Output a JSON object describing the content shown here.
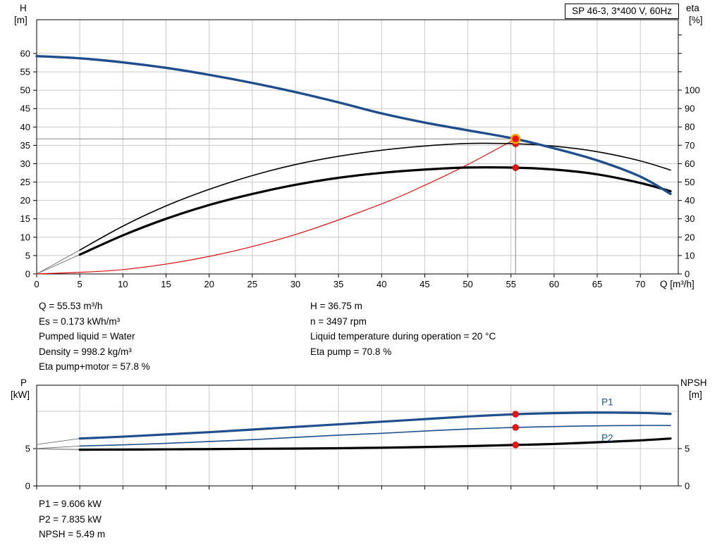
{
  "title_box": {
    "label": "SP 46-3, 3*400 V, 60Hz"
  },
  "axes_labels": {
    "h": "H",
    "h_unit": "[m]",
    "eta": "eta",
    "eta_unit": "[%]",
    "q": "Q [m³/h]",
    "p": "P",
    "p_unit": "[kW]",
    "npsh": "NPSH",
    "npsh_unit": "[m]"
  },
  "info_panel": {
    "left": [
      "Q = 55.53 m³/h",
      "Es = 0.173 kWh/m³",
      "Pumped liquid = Water",
      "Density = 998.2 kg/m³",
      "Eta pump+motor = 57.8 %"
    ],
    "right": [
      "H = 36.75 m",
      "n = 3497 rpm",
      "Liquid temperature during operation = 20 °C",
      "Eta pump = 70.8 %"
    ]
  },
  "results_panel": [
    "P1 = 9.606 kW",
    "P2 = 7.835 kW",
    "NPSH = 5.49 m"
  ],
  "duty_point": {
    "Q_m3h": 55.53,
    "H_m": 36.75,
    "eta_pump_pct": 70.8,
    "eta_pump_motor_pct": 57.8,
    "P1_kW": 9.606,
    "P2_kW": 7.835,
    "NPSH_m": 5.49,
    "n_rpm": 3497
  },
  "colors": {
    "curve_blue": "#1f4e8c",
    "curve_black": "#000000",
    "curve_red": "#e01010",
    "marker_red": "#e8150d",
    "marker_ring_orange": "#ffa400",
    "grid_gray": "#c9c9c9",
    "crosshair_gray": "#888888",
    "lead_gray": "#6f6f6f"
  },
  "chart_data": [
    {
      "type": "line",
      "name": "qh-eta-chart",
      "title": "SP 46-3, 3*400 V, 60Hz",
      "xlabel": "Q [m³/h]",
      "ylabel_left": "H [m]",
      "ylabel_right": "eta [%]",
      "xlim": [
        0,
        74.4
      ],
      "ylim_left": [
        0,
        69.2
      ],
      "ylim_right": [
        0,
        138.3
      ],
      "xticks": [
        0,
        5,
        10,
        15,
        20,
        25,
        30,
        35,
        40,
        45,
        50,
        55,
        60,
        65,
        70
      ],
      "x_tick_labels": true,
      "yticks_left": [
        0,
        5,
        10,
        15,
        20,
        25,
        30,
        35,
        40,
        45,
        50,
        55,
        60
      ],
      "yticks_right": [
        0,
        10,
        20,
        30,
        40,
        50,
        60,
        70,
        80,
        90,
        100
      ],
      "yticks_right_unlabeled": [
        110,
        120,
        130
      ],
      "ygrid": [
        5,
        10,
        15,
        20,
        25,
        30,
        35,
        40,
        45,
        50,
        55,
        60
      ],
      "grid": true,
      "legend_position": "none",
      "crosshair": {
        "q": 55.53,
        "h": 36.75
      },
      "series": [
        {
          "name": "eta-pump-lead",
          "axis": "right",
          "color": "#6f6f6f",
          "width": 0.9,
          "x": [
            0,
            5
          ],
          "y": [
            0,
            13
          ]
        },
        {
          "name": "eta-pump-motor-lead",
          "axis": "right",
          "color": "#6f6f6f",
          "width": 0.9,
          "x": [
            0,
            5
          ],
          "y": [
            0,
            10.5
          ]
        },
        {
          "name": "system-curve",
          "axis": "left",
          "color": "#e01010",
          "width": 1.2,
          "x": [
            0,
            10,
            20,
            30,
            40,
            45,
            50,
            55.53
          ],
          "y": [
            0,
            1.19,
            4.77,
            10.73,
            19.07,
            24.14,
            29.79,
            36.75
          ]
        },
        {
          "name": "eta-pump-curve",
          "axis": "right",
          "color": "#000000",
          "width": 1.6,
          "x": [
            5,
            10,
            15,
            20,
            25,
            30,
            35,
            40,
            45,
            50,
            55.53,
            60,
            65,
            70,
            73.5
          ],
          "y": [
            13,
            26,
            37,
            46,
            53.5,
            59.5,
            64,
            67.3,
            69.6,
            71.0,
            70.8,
            69.5,
            66.5,
            61.5,
            56.5
          ]
        },
        {
          "name": "eta-pump-motor-curve",
          "axis": "right",
          "color": "#000000",
          "width": 3.2,
          "x": [
            5,
            10,
            15,
            20,
            25,
            30,
            35,
            40,
            45,
            50,
            55.53,
            60,
            65,
            70,
            73.5
          ],
          "y": [
            10.5,
            21,
            30,
            37.5,
            43.5,
            48.5,
            52.3,
            55.0,
            56.8,
            57.9,
            57.8,
            56.8,
            54.2,
            49.5,
            45.0
          ]
        },
        {
          "name": "pump-curve",
          "axis": "left",
          "color": "#1f4e8c",
          "width": 3.4,
          "x": [
            0,
            5,
            10,
            15,
            20,
            25,
            30,
            35,
            40,
            45,
            50,
            55.53,
            60,
            65,
            70,
            73.5
          ],
          "y": [
            59.3,
            58.7,
            57.6,
            56.1,
            54.2,
            52.0,
            49.5,
            46.7,
            43.7,
            41.2,
            39.1,
            36.75,
            34.2,
            30.9,
            26.5,
            21.8
          ]
        }
      ],
      "markers": [
        {
          "name": "eta-pump-motor-point",
          "q": 55.53,
          "value": 57.8,
          "axis": "right",
          "style": "dot"
        },
        {
          "name": "eta-pump-point",
          "q": 55.53,
          "value": 70.8,
          "axis": "right",
          "style": "dot"
        },
        {
          "name": "duty-point",
          "q": 55.53,
          "value": 36.75,
          "axis": "left",
          "style": "target"
        }
      ]
    },
    {
      "type": "line",
      "name": "power-npsh-chart",
      "title": "",
      "xlabel": "",
      "ylabel_left": "P [kW]",
      "ylabel_right": "NPSH [m]",
      "xlim": [
        0,
        74.4
      ],
      "ylim_left": [
        0,
        13.49
      ],
      "ylim_right": [
        0,
        13.49
      ],
      "xticks": [
        0,
        5,
        10,
        15,
        20,
        25,
        30,
        35,
        40,
        45,
        50,
        55,
        60,
        65,
        70
      ],
      "x_tick_labels": false,
      "yticks_left": [
        0,
        5
      ],
      "yticks_right": [
        0,
        5
      ],
      "yticks_right_unlabeled": [],
      "ygrid": [
        5,
        10
      ],
      "grid": true,
      "legend_position": "inline",
      "series": [
        {
          "name": "p1-lead",
          "axis": "left",
          "color": "#6f6f6f",
          "width": 0.9,
          "x": [
            0,
            5
          ],
          "y": [
            5.55,
            6.35
          ]
        },
        {
          "name": "p2-lead",
          "axis": "left",
          "color": "#6f6f6f",
          "width": 0.9,
          "x": [
            0,
            5
          ],
          "y": [
            5.0,
            5.35
          ]
        },
        {
          "name": "npsh-lead",
          "axis": "right",
          "color": "#6f6f6f",
          "width": 0.9,
          "x": [
            0,
            5
          ],
          "y": [
            4.95,
            4.85
          ]
        },
        {
          "name": "p2-curve",
          "axis": "left",
          "color": "#1f4e8c",
          "width": 1.6,
          "x": [
            5,
            10,
            15,
            20,
            25,
            30,
            35,
            40,
            45,
            50,
            55.53,
            60,
            65,
            70,
            73.5
          ],
          "y": [
            5.35,
            5.5,
            5.7,
            5.95,
            6.2,
            6.5,
            6.8,
            7.05,
            7.35,
            7.62,
            7.835,
            7.95,
            8.05,
            8.1,
            8.1
          ]
        },
        {
          "name": "npsh-curve",
          "axis": "right",
          "color": "#000000",
          "width": 3.2,
          "x": [
            5,
            10,
            15,
            20,
            25,
            30,
            35,
            40,
            45,
            50,
            55.53,
            60,
            65,
            70,
            73.5
          ],
          "y": [
            4.85,
            4.87,
            4.9,
            4.93,
            4.97,
            5.0,
            5.05,
            5.12,
            5.22,
            5.33,
            5.49,
            5.62,
            5.85,
            6.1,
            6.35
          ]
        },
        {
          "name": "p1-curve",
          "axis": "left",
          "color": "#1f4e8c",
          "width": 3.2,
          "x": [
            5,
            10,
            15,
            20,
            25,
            30,
            35,
            40,
            45,
            50,
            55.53,
            60,
            65,
            70,
            73.5
          ],
          "y": [
            6.35,
            6.6,
            6.9,
            7.2,
            7.55,
            7.9,
            8.25,
            8.6,
            8.95,
            9.3,
            9.606,
            9.75,
            9.82,
            9.78,
            9.65
          ]
        }
      ],
      "series_labels": [
        {
          "text": "P1",
          "q": 65.5,
          "value": 10.8,
          "axis": "left",
          "color": "#1f4e8c"
        },
        {
          "text": "P2",
          "q": 65.5,
          "value": 6.0,
          "axis": "left",
          "color": "#1f4e8c"
        }
      ],
      "markers": [
        {
          "name": "p1-point",
          "q": 55.53,
          "value": 9.606,
          "axis": "left",
          "style": "dot"
        },
        {
          "name": "p2-point",
          "q": 55.53,
          "value": 7.835,
          "axis": "left",
          "style": "dot"
        },
        {
          "name": "npsh-point",
          "q": 55.53,
          "value": 5.49,
          "axis": "right",
          "style": "dot"
        }
      ]
    }
  ]
}
